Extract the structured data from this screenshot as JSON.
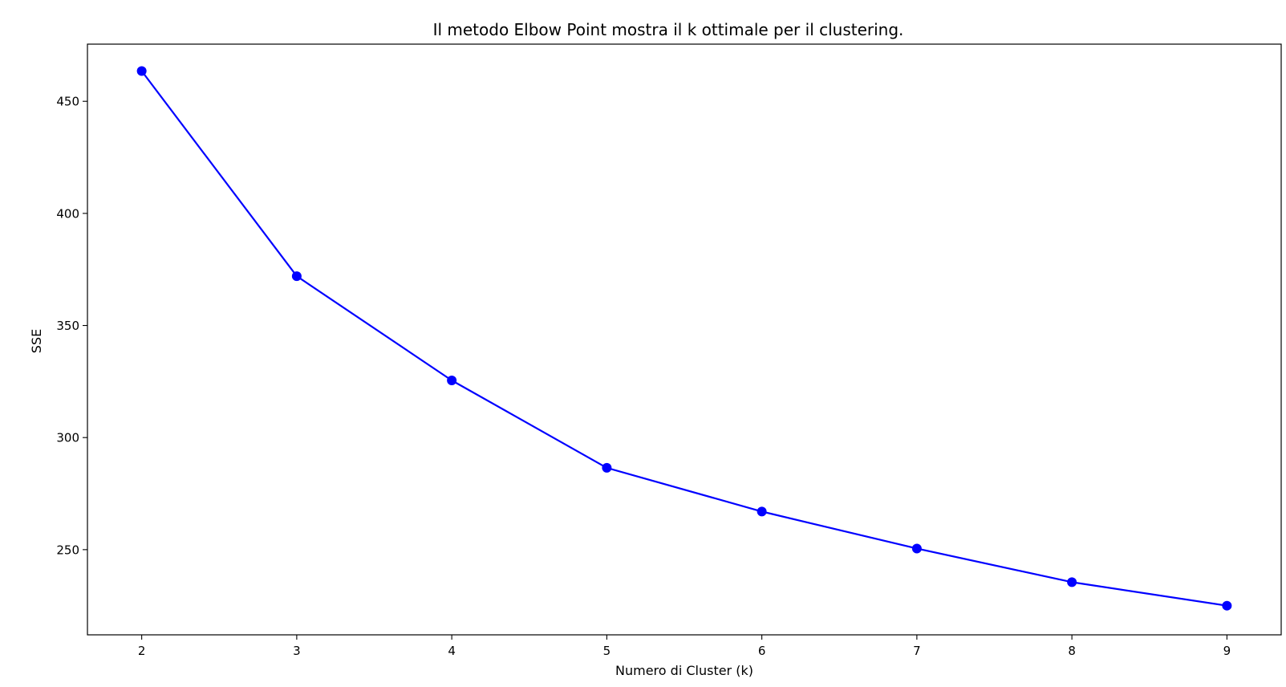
{
  "chart_data": {
    "type": "line",
    "title": "Il metodo Elbow Point mostra il k ottimale per il clustering.",
    "xlabel": "Numero di Cluster (k)",
    "ylabel": "SSE",
    "x": [
      2,
      3,
      4,
      5,
      6,
      7,
      8,
      9
    ],
    "series": [
      {
        "values": [
          463.5,
          372.0,
          325.5,
          286.5,
          267.0,
          250.5,
          235.5,
          225.0
        ],
        "color": "#0000ff",
        "marker": "circle"
      }
    ],
    "xticks": [
      "2",
      "3",
      "4",
      "5",
      "6",
      "7",
      "8",
      "9"
    ],
    "yticks": [
      "250",
      "300",
      "350",
      "400",
      "450"
    ],
    "xlim": [
      1.65,
      9.35
    ],
    "ylim": [
      212.0,
      475.5
    ],
    "grid": false,
    "legend": "none"
  }
}
